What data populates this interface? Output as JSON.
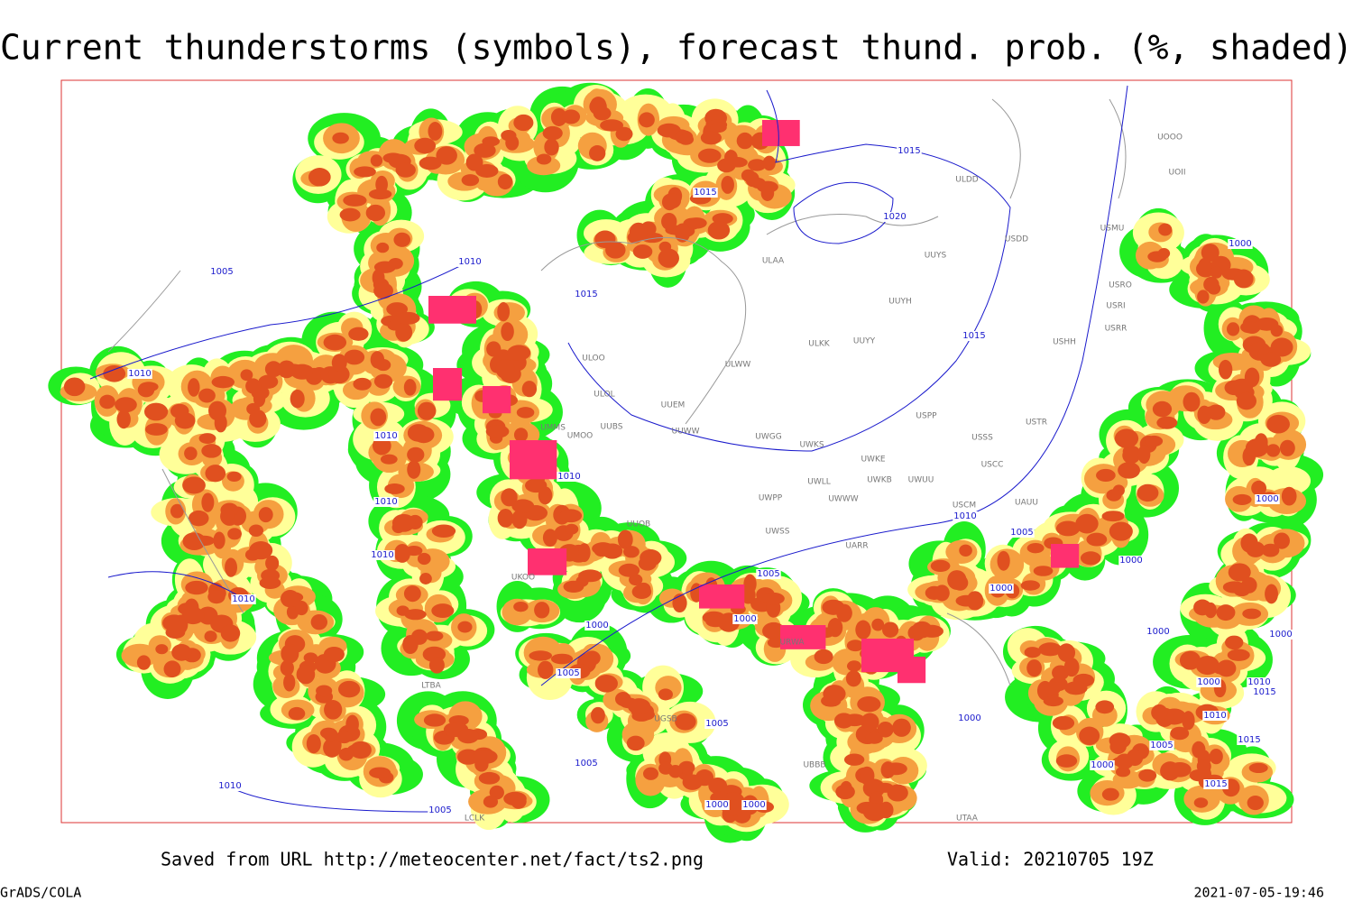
{
  "title": "Current thunderstorms (symbols), forecast thund. prob. (%, shaded)",
  "footer": {
    "source": "Saved from URL http://meteocenter.net/fact/ts2.png",
    "valid": "Valid: 20210705 19Z",
    "software": "GrADS/COLA",
    "timestamp": "2021-07-05-19:46"
  },
  "isobar_labels": [
    "1015",
    "1015",
    "1020",
    "1005",
    "1010",
    "1015",
    "1010",
    "1015",
    "1000",
    "1010",
    "1010",
    "1010",
    "1010",
    "1010",
    "1010",
    "1005",
    "1005",
    "1000",
    "1000",
    "1000",
    "1000",
    "1000",
    "1000",
    "1005",
    "1005",
    "1000",
    "1005",
    "1000",
    "1000",
    "1000",
    "1005",
    "1010",
    "1000",
    "1010",
    "1015",
    "1010",
    "1015",
    "1005",
    "1015",
    "1000"
  ],
  "station_labels": [
    "UOOO",
    "UOII",
    "ULDD",
    "USDD",
    "UUYS",
    "USMU",
    "ULAA",
    "USRO",
    "UUYH",
    "USRI",
    "USRR",
    "ULKK",
    "UUYY",
    "USHH",
    "ULOO",
    "ULWW",
    "ULOL",
    "UUEM",
    "USPP",
    "USTR",
    "UMMS",
    "UUBS",
    "UMOO",
    "UUWW",
    "UWGG",
    "UWKS",
    "USSS",
    "UWKE",
    "USCC",
    "UWKB",
    "UWUU",
    "UWLL",
    "UWWW",
    "UWPP",
    "USCM",
    "UAUU",
    "UWSS",
    "UARR",
    "UUOB",
    "UKOO",
    "URWA",
    "UTAA",
    "UBBB",
    "UGSB",
    "LTBA",
    "LCLK"
  ]
}
